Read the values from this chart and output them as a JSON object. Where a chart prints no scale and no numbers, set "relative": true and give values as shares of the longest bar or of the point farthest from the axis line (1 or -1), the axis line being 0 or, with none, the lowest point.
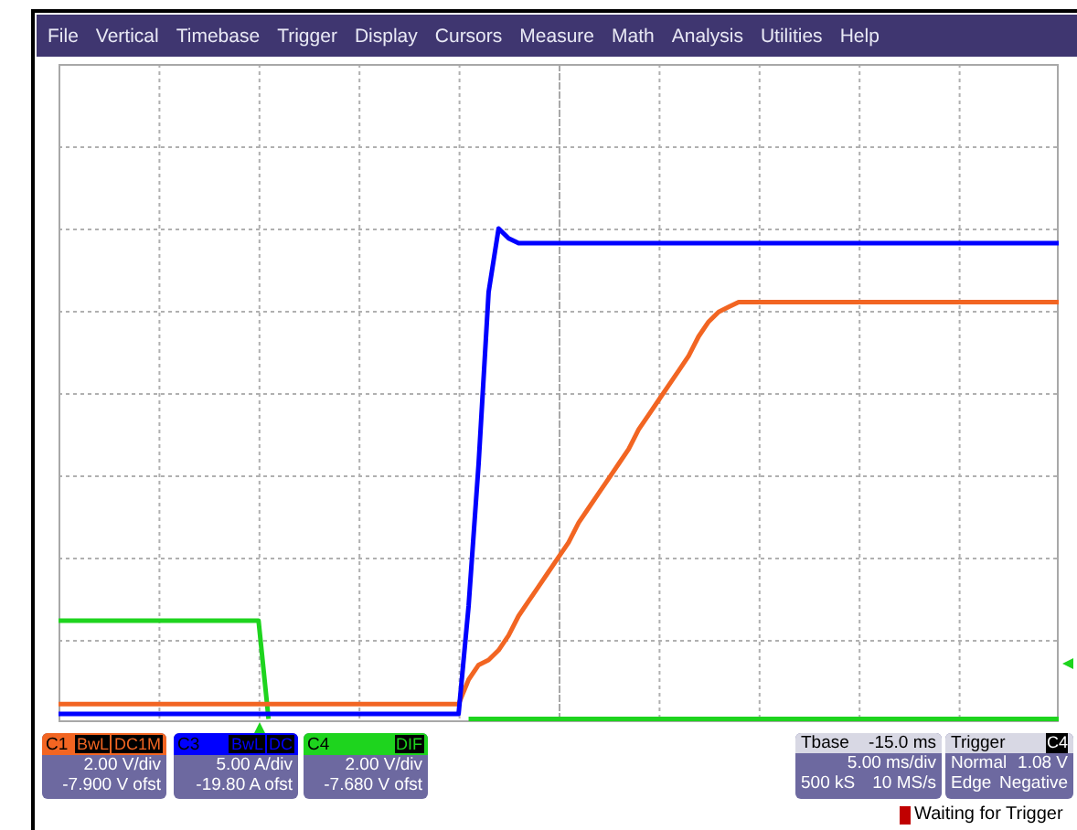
{
  "chart_data": {
    "type": "line",
    "relative": true,
    "grid": true,
    "legend": "bottom left",
    "categories": [
      null,
      null,
      null,
      null,
      null,
      null,
      null,
      null,
      null,
      null,
      null,
      null,
      null,
      null,
      null,
      null,
      null,
      null,
      null,
      null,
      null,
      null,
      null,
      null,
      null,
      null,
      null,
      null,
      null,
      null,
      null,
      null,
      null,
      null,
      null,
      null,
      null,
      null,
      null,
      null,
      null,
      null,
      null,
      null,
      null,
      null,
      null,
      null,
      null,
      null,
      null,
      null,
      null,
      null,
      null,
      null,
      null,
      null,
      null,
      null,
      null,
      null,
      null,
      null,
      null,
      null,
      null,
      null,
      null,
      null,
      null,
      null,
      null,
      null,
      null,
      null,
      null,
      null,
      null,
      null,
      null,
      null,
      null,
      null,
      null,
      null,
      null,
      null,
      null,
      null,
      null,
      null,
      null,
      null,
      null,
      null,
      null,
      null,
      null,
      null,
      null
    ],
    "series": [
      {
        "name": "C1",
        "color": "#f26522",
        "values": [
          0.03,
          0.03,
          0.03,
          0.03,
          0.03,
          0.03,
          0.03,
          0.03,
          0.03,
          0.03,
          0.03,
          0.03,
          0.03,
          0.03,
          0.03,
          0.03,
          0.03,
          0.03,
          0.03,
          0.03,
          0.03,
          0.03,
          0.03,
          0.03,
          0.03,
          0.03,
          0.03,
          0.03,
          0.03,
          0.03,
          0.03,
          0.03,
          0.03,
          0.03,
          0.03,
          0.03,
          0.03,
          0.03,
          0.03,
          0.03,
          0.03,
          0.08,
          0.11,
          0.12,
          0.14,
          0.17,
          0.21,
          0.24,
          0.27,
          0.3,
          0.33,
          0.36,
          0.4,
          0.43,
          0.46,
          0.49,
          0.52,
          0.55,
          0.59,
          0.62,
          0.65,
          0.68,
          0.71,
          0.74,
          0.78,
          0.81,
          0.83,
          0.84,
          0.85,
          0.85,
          0.85,
          0.85,
          0.85,
          0.85,
          0.85,
          0.85,
          0.85,
          0.85,
          0.85,
          0.85,
          0.85,
          0.85,
          0.85,
          0.85,
          0.85,
          0.85,
          0.85,
          0.85,
          0.85,
          0.85,
          0.85,
          0.85,
          0.85,
          0.85,
          0.85,
          0.85,
          0.85,
          0.85,
          0.85,
          0.85,
          0.85
        ]
      },
      {
        "name": "C3",
        "color": "#0000ff",
        "values": [
          0.01,
          0.01,
          0.01,
          0.01,
          0.01,
          0.01,
          0.01,
          0.01,
          0.01,
          0.01,
          0.01,
          0.01,
          0.01,
          0.01,
          0.01,
          0.01,
          0.01,
          0.01,
          0.01,
          0.01,
          0.01,
          0.01,
          0.01,
          0.01,
          0.01,
          0.01,
          0.01,
          0.01,
          0.01,
          0.01,
          0.01,
          0.01,
          0.01,
          0.01,
          0.01,
          0.01,
          0.01,
          0.01,
          0.01,
          0.01,
          0.01,
          0.23,
          0.52,
          0.87,
          1,
          0.98,
          0.97,
          0.97,
          0.97,
          0.97,
          0.97,
          0.97,
          0.97,
          0.97,
          0.97,
          0.97,
          0.97,
          0.97,
          0.97,
          0.97,
          0.97,
          0.97,
          0.97,
          0.97,
          0.97,
          0.97,
          0.97,
          0.97,
          0.97,
          0.97,
          0.97,
          0.97,
          0.97,
          0.97,
          0.97,
          0.97,
          0.97,
          0.97,
          0.97,
          0.97,
          0.97,
          0.97,
          0.97,
          0.97,
          0.97,
          0.97,
          0.97,
          0.97,
          0.97,
          0.97,
          0.97,
          0.97,
          0.97,
          0.97,
          0.97,
          0.97,
          0.97,
          0.97,
          0.97,
          0.97,
          0.97
        ]
      },
      {
        "name": "C4",
        "color": "#1ed41e",
        "values": [
          0.2,
          0.2,
          0.2,
          0.2,
          0.2,
          0.2,
          0.2,
          0.2,
          0.2,
          0.2,
          0.2,
          0.2,
          0.2,
          0.2,
          0.2,
          0.2,
          0.2,
          0.2,
          0.2,
          0.2,
          0.2,
          0,
          null,
          null,
          null,
          null,
          null,
          null,
          null,
          null,
          null,
          null,
          null,
          null,
          null,
          null,
          null,
          null,
          null,
          null,
          null,
          0,
          0,
          0,
          0,
          0,
          0,
          0,
          0,
          0,
          0,
          0,
          0,
          0,
          0,
          0,
          0,
          0,
          0,
          0,
          0,
          0,
          0,
          0,
          0,
          0,
          0,
          0,
          0,
          0,
          0,
          0,
          0,
          0,
          0,
          0,
          0,
          0,
          0,
          0,
          0,
          0,
          0,
          0,
          0,
          0,
          0,
          0,
          0,
          0,
          0,
          0,
          0,
          0,
          0,
          0,
          0,
          0,
          0,
          0,
          0
        ]
      }
    ],
    "annotations": [
      "File",
      "Vertical",
      "Timebase",
      "Trigger",
      "Display",
      "Cursors",
      "Measure",
      "Math",
      "Analysis",
      "Utilities",
      "Help",
      "BwL",
      "DC1M",
      "2.00 V/div",
      "-7.900 V ofst",
      "BwL",
      "DC",
      "5.00 A/div",
      "-19.80 A ofst",
      "DIF",
      "2.00 V/div",
      "-7.680 V ofst",
      "Tbase",
      "-15.0 ms",
      "5.00 ms/div",
      "500 kS",
      "10 MS/s",
      "Trigger",
      "C4",
      "Normal",
      "1.08 V",
      "Edge",
      "Negative",
      "Waiting for Trigger"
    ]
  }
}
